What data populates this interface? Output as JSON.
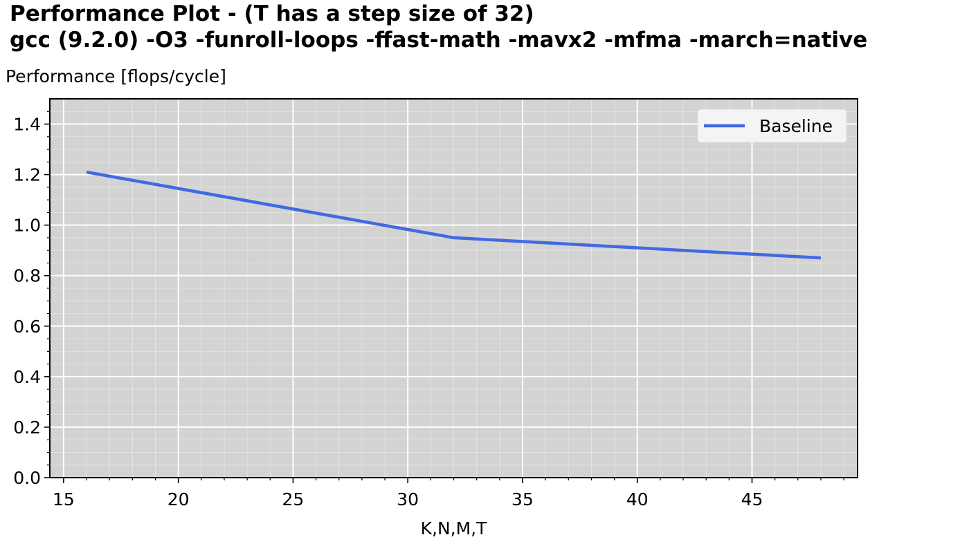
{
  "title_line1": "Performance Plot  -  (T has a step size of 32)",
  "title_line2": "gcc (9.2.0) -O3 -funroll-loops -ffast-math -mavx2 -mfma -march=native",
  "chart_data": {
    "type": "line",
    "ylabel": "Performance [flops/cycle]",
    "xlabel": "K,N,M,T",
    "xlim": [
      14.4,
      49.6
    ],
    "ylim": [
      0.0,
      1.5
    ],
    "xticks": [
      15,
      20,
      25,
      30,
      35,
      40,
      45
    ],
    "xtick_labels": [
      "15",
      "20",
      "25",
      "30",
      "35",
      "40",
      "45"
    ],
    "yticks": [
      0.0,
      0.2,
      0.4,
      0.6,
      0.8,
      1.0,
      1.2,
      1.4
    ],
    "ytick_labels": [
      "0.0",
      "0.2",
      "0.4",
      "0.6",
      "0.8",
      "1.0",
      "1.2",
      "1.4"
    ],
    "grid": true,
    "background": "#d3d3d3",
    "legend_position": "top-right",
    "series": [
      {
        "name": "Baseline",
        "color": "#4169e1",
        "x": [
          16,
          32,
          48
        ],
        "y": [
          1.21,
          0.95,
          0.87
        ]
      }
    ]
  }
}
